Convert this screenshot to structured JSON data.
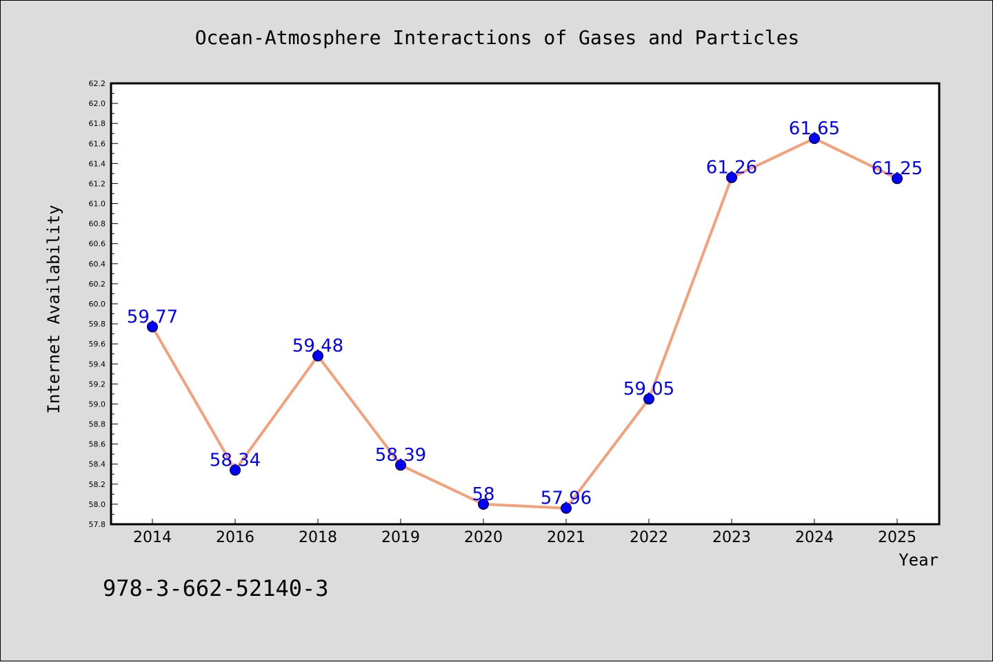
{
  "chart_data": {
    "type": "line",
    "title": "Ocean-Atmosphere Interactions of Gases and Particles",
    "xlabel": "Year",
    "ylabel": "Internet Availability",
    "categories": [
      "2014",
      "2016",
      "2018",
      "2019",
      "2020",
      "2021",
      "2022",
      "2023",
      "2024",
      "2025"
    ],
    "series": [
      {
        "values": [
          59.77,
          58.34,
          59.48,
          58.39,
          58.0,
          57.96,
          59.05,
          61.26,
          61.65,
          61.25
        ],
        "labels": [
          "59.77",
          "58.34",
          "59.48",
          "58.39",
          "58",
          "57.96",
          "59.05",
          "61.26",
          "61.65",
          "61.25"
        ]
      }
    ],
    "ylim": [
      57.8,
      62.2
    ],
    "yticks": [
      "57.8",
      "58.0",
      "58.2",
      "58.4",
      "58.6",
      "58.8",
      "59.0",
      "59.2",
      "59.4",
      "59.6",
      "59.8",
      "60.0",
      "60.2",
      "60.4",
      "60.6",
      "60.8",
      "61.0",
      "61.2",
      "61.4",
      "61.6",
      "61.8",
      "62.0",
      "62.2"
    ],
    "grid": false,
    "colors": {
      "line": "#f4a07a",
      "marker": "#0000ff",
      "label": "#0000ff",
      "background": "#dcdcdc",
      "plot_background": "#ffffff"
    }
  },
  "footer": {
    "isbn": "978-3-662-52140-3"
  }
}
